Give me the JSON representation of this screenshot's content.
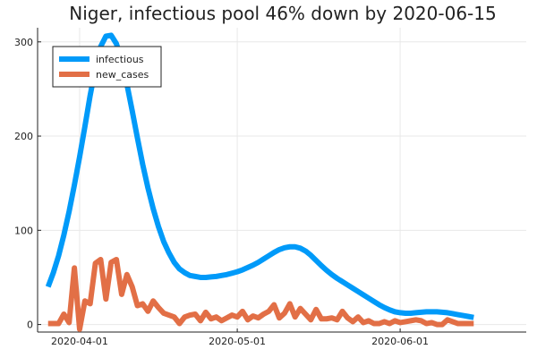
{
  "chart_data": {
    "type": "line",
    "title": "Niger, infectious pool 46% down by 2020-06-15",
    "xlabel": "",
    "ylabel": "",
    "xaxis": "date",
    "xlim": [
      "2020-03-24",
      "2020-06-25"
    ],
    "ylim": [
      -8,
      315
    ],
    "x_ticks": [
      "2020-04-01",
      "2020-05-01",
      "2020-06-01"
    ],
    "y_ticks": [
      0,
      100,
      200,
      300
    ],
    "grid": true,
    "legend_position": "top-left",
    "x": [
      "2020-03-26",
      "2020-03-27",
      "2020-03-28",
      "2020-03-29",
      "2020-03-30",
      "2020-03-31",
      "2020-04-01",
      "2020-04-02",
      "2020-04-03",
      "2020-04-04",
      "2020-04-05",
      "2020-04-06",
      "2020-04-07",
      "2020-04-08",
      "2020-04-09",
      "2020-04-10",
      "2020-04-11",
      "2020-04-12",
      "2020-04-13",
      "2020-04-14",
      "2020-04-15",
      "2020-04-16",
      "2020-04-17",
      "2020-04-18",
      "2020-04-19",
      "2020-04-20",
      "2020-04-21",
      "2020-04-22",
      "2020-04-23",
      "2020-04-24",
      "2020-04-25",
      "2020-04-26",
      "2020-04-27",
      "2020-04-28",
      "2020-04-29",
      "2020-04-30",
      "2020-05-01",
      "2020-05-02",
      "2020-05-03",
      "2020-05-04",
      "2020-05-05",
      "2020-05-06",
      "2020-05-07",
      "2020-05-08",
      "2020-05-09",
      "2020-05-10",
      "2020-05-11",
      "2020-05-12",
      "2020-05-13",
      "2020-05-14",
      "2020-05-15",
      "2020-05-16",
      "2020-05-17",
      "2020-05-18",
      "2020-05-19",
      "2020-05-20",
      "2020-05-21",
      "2020-05-22",
      "2020-05-23",
      "2020-05-24",
      "2020-05-25",
      "2020-05-26",
      "2020-05-27",
      "2020-05-28",
      "2020-05-29",
      "2020-05-30",
      "2020-05-31",
      "2020-06-01",
      "2020-06-02",
      "2020-06-03",
      "2020-06-04",
      "2020-06-05",
      "2020-06-06",
      "2020-06-07",
      "2020-06-08",
      "2020-06-09",
      "2020-06-10",
      "2020-06-11",
      "2020-06-12",
      "2020-06-13",
      "2020-06-14",
      "2020-06-15"
    ],
    "series": [
      {
        "name": "infectious",
        "color": "#009af9",
        "values": [
          40,
          55,
          73,
          95,
          120,
          148,
          178,
          210,
          243,
          272,
          295,
          306,
          307,
          298,
          280,
          255,
          227,
          198,
          170,
          145,
          123,
          104,
          88,
          76,
          66,
          59,
          55,
          52,
          51,
          50,
          50,
          50.5,
          51,
          52,
          53,
          54.5,
          56,
          58,
          60.5,
          63,
          66,
          69.5,
          73,
          76.5,
          79.5,
          81.5,
          82.5,
          82.5,
          81,
          78,
          73.5,
          68,
          62.5,
          57.5,
          53,
          49,
          45.5,
          42,
          38.5,
          35,
          31.5,
          28,
          24.5,
          21,
          18,
          15.5,
          13.5,
          12.5,
          12,
          12,
          12.5,
          13,
          13.5,
          13.5,
          13.5,
          13,
          12.5,
          11.5,
          10.5,
          9.5,
          8.5,
          7.5
        ]
      },
      {
        "name": "new_cases",
        "color": "#e26f46",
        "values": [
          1,
          1,
          1,
          11,
          2,
          60,
          -5,
          25,
          22,
          65,
          69,
          27,
          66,
          69,
          32,
          53,
          40,
          20,
          22,
          14,
          25,
          18,
          12,
          10,
          8,
          1,
          8,
          10,
          11,
          4,
          13,
          6,
          8,
          4,
          7,
          10,
          8,
          14,
          5,
          9,
          7,
          11,
          14,
          21,
          7,
          12,
          22,
          8,
          17,
          11,
          5,
          16,
          6,
          6,
          7,
          5,
          14,
          7,
          3,
          8,
          2,
          4,
          1,
          1,
          3,
          1,
          4,
          2,
          3,
          4,
          5,
          4,
          1,
          2,
          0,
          0,
          5,
          3,
          1,
          1,
          1,
          1
        ]
      }
    ]
  }
}
